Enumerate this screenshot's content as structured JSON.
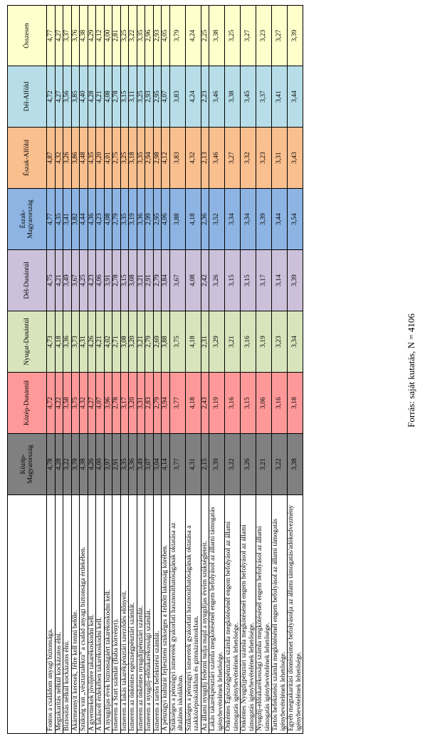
{
  "table": {
    "columns": [
      {
        "label": "",
        "color": "#ffffff"
      },
      {
        "label": "Közép-Magyarország",
        "color": "#808080"
      },
      {
        "label": "Közép-Dunántúl",
        "color": "#ff9999"
      },
      {
        "label": "Nyugat-Dunántúl",
        "color": "#d8e4bc"
      },
      {
        "label": "Dél-Dunántúl",
        "color": "#ccc0da"
      },
      {
        "label": "Észak-Magyarország",
        "color": "#8db4e2"
      },
      {
        "label": "Észak-Alföld",
        "color": "#fabf8f"
      },
      {
        "label": "Dél-Alföld",
        "color": "#b7dee8"
      },
      {
        "label": "Összesen",
        "color": "#ffffcc"
      }
    ],
    "rows": [
      {
        "label": "Fontos a családom anyagi biztonsága.",
        "values": [
          "4,78",
          "4,72",
          "4,73",
          "4,75",
          "4,77",
          "4,87",
          "4,72",
          "4,77"
        ]
      },
      {
        "label": "Megtakarítás nélkül kockázatos élni.",
        "values": [
          "4,28",
          "4,22",
          "4,18",
          "4,21",
          "4,35",
          "4,32",
          "4,27",
          "4,27"
        ]
      },
      {
        "label": "Biztosítás nélkül kockázatos élni.",
        "values": [
          "3,22",
          "3,58",
          "3,36",
          "3,49",
          "3,41",
          "3,26",
          "3,56",
          "3,37"
        ]
      },
      {
        "label": "Akármennyit keresek, félre kell tenni belőle.",
        "values": [
          "3,70",
          "3,75",
          "3,73",
          "3,67",
          "3,82",
          "3,86",
          "3,85",
          "3,76"
        ]
      },
      {
        "label": "Szükség van „vésztartalékra” a család anyagi biztonsága érdekében.",
        "values": [
          "4,38",
          "4,32",
          "4,31",
          "4,25",
          "4,44",
          "4,48",
          "4,40",
          "4,38"
        ]
      },
      {
        "label": "A gyermekek jövőjére takarékoskodni kell.",
        "values": [
          "4,26",
          "4,27",
          "4,26",
          "4,23",
          "4,36",
          "4,35",
          "4,28",
          "4,29"
        ]
      },
      {
        "label": "A lakáscél érdekében takarékoskodni kell.",
        "values": [
          "4,00",
          "4,07",
          "4,21",
          "4,06",
          "4,23",
          "4,20",
          "4,21",
          "4,12"
        ]
      },
      {
        "label": "A nyugdíjas évek biztonságáért takarékoskodni kell.",
        "values": [
          "3,97",
          "3,96",
          "4,02",
          "3,91",
          "4,08",
          "4,01",
          "4,08",
          "4,00"
        ]
      },
      {
        "label": "Ismerem a Start számlát (Baba kötvényt).",
        "values": [
          "2,91",
          "2,78",
          "2,71",
          "2,78",
          "2,79",
          "2,75",
          "2,78",
          "2,81"
        ]
      },
      {
        "label": "Ismerem a lakás takarékpénztári szerződés előnyeit.",
        "values": [
          "3,35",
          "3,17",
          "3,08",
          "3,15",
          "3,35",
          "3,25",
          "3,15",
          "3,25"
        ]
      },
      {
        "label": "Ismerem az önkéntes egészségpénztári számlát.",
        "values": [
          "3,36",
          "3,20",
          "3,20",
          "3,08",
          "3,19",
          "3,18",
          "3,11",
          "3,22"
        ]
      },
      {
        "label": "Ismerem az önkéntes nyugdíjpénztári számlát.",
        "values": [
          "3,49",
          "3,31",
          "3,21",
          "3,21",
          "3,36",
          "3,35",
          "3,25",
          "3,35"
        ]
      },
      {
        "label": "Ismerem a nyugdíj-előtakarékossági számlát.",
        "values": [
          "3,07",
          "2,83",
          "2,79",
          "2,91",
          "2,99",
          "2,94",
          "2,93",
          "2,96"
        ]
      },
      {
        "label": "Ismerem a tartós befektetési számlát.",
        "values": [
          "3,04",
          "2,79",
          "2,69",
          "2,79",
          "2,95",
          "2,98",
          "2,95",
          "2,93"
        ]
      },
      {
        "label": "A pénzügyi kultúrát fejleszteni szükséges a felnőtt lakosság körében.",
        "values": [
          "4,14",
          "3,94",
          "3,88",
          "3,84",
          "4,06",
          "4,12",
          "4,07",
          "4,05"
        ]
      },
      {
        "label": "Szükséges a pénzügyi ismeretek gyakorlati hasznosíthatóságának oktatása az általános iskolákban.",
        "values": [
          "3,77",
          "3,77",
          "3,75",
          "3,67",
          "3,88",
          "3,83",
          "3,83",
          "3,79"
        ]
      },
      {
        "label": "Szükséges a pénzügyi ismeretek gyakorlati hasznosíthatóságának oktatása a szakközépiskolákban és gimnáziumokban.",
        "values": [
          "4,31",
          "4,18",
          "4,18",
          "4,08",
          "4,18",
          "4,32",
          "4,24",
          "4,24"
        ]
      },
      {
        "label": "Az állami nyugdíj fedezni tudja majd a nyugdíjas éveim szükségleteit.",
        "values": [
          "2,15",
          "2,43",
          "2,31",
          "2,42",
          "2,36",
          "2,13",
          "2,23",
          "2,25"
        ]
      },
      {
        "label": "Lakás takarékpénztári számla megkötésénél engem befolyásol az állami támogatás igénybevételének lehetősége.",
        "values": [
          "3,39",
          "3,19",
          "3,29",
          "3,26",
          "3,52",
          "3,46",
          "3,46",
          "3,38"
        ]
      },
      {
        "label": "Önkéntes Egészségpénztári számla megkötésénél engem befolyásol az állami támogatás igénybevételének lehetősége.",
        "values": [
          "3,22",
          "3,16",
          "3,21",
          "3,15",
          "3,34",
          "3,27",
          "3,38",
          "3,25"
        ]
      },
      {
        "label": "Önkéntes Nyugdíjpénztári számla megkötésénél engem befolyásol az állami támogatás igénybevételének lehetősége.",
        "values": [
          "3,26",
          "3,15",
          "3,16",
          "3,15",
          "3,34",
          "3,32",
          "3,45",
          "3,27"
        ]
      },
      {
        "label": "Nyugdíj-előtakarékossági számla megkötésénél engem befolyásol az állami támogatás igénybevételének lehetősége.",
        "values": [
          "3,21",
          "3,06",
          "3,19",
          "3,17",
          "3,39",
          "3,23",
          "3,37",
          "3,23"
        ]
      },
      {
        "label": "Tartós befektetési számla megkötésénél engem befolyásol az állami támogatás igénybevételének lehetősége.",
        "values": [
          "3,22",
          "3,16",
          "3,23",
          "3,14",
          "3,44",
          "3,31",
          "3,41",
          "3,27"
        ]
      },
      {
        "label": "Egyéb megtakarítási döntéseimet befolyásolja az állami támogatás/adókedvezmény igénybevételének lehetősége.",
        "values": [
          "3,38",
          "3,18",
          "3,34",
          "3,39",
          "3,54",
          "3,43",
          "3,44",
          "3,39"
        ]
      }
    ]
  },
  "source": "Forrás: saját kutatás, N = 4106"
}
